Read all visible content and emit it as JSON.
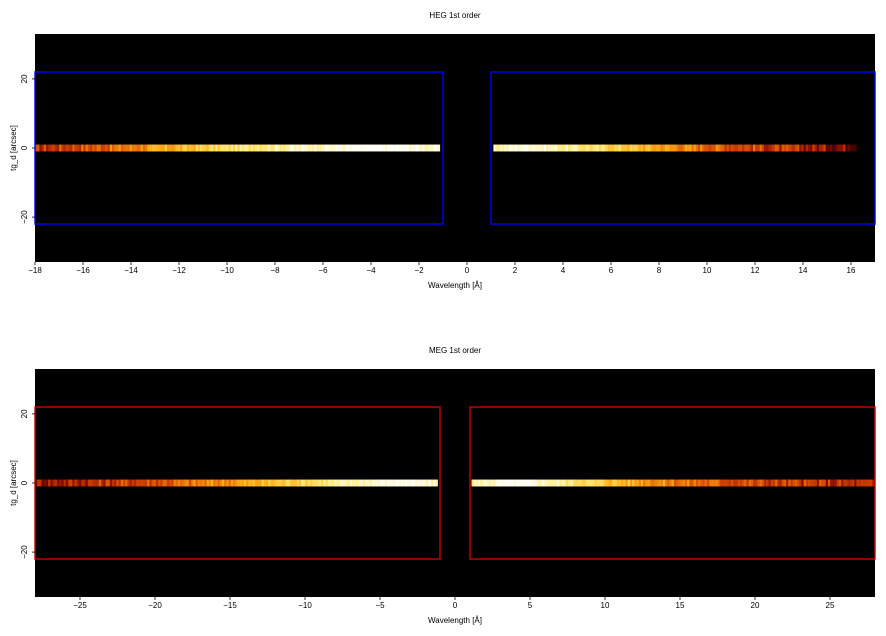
{
  "chart_data": [
    {
      "type": "heatmap",
      "title": "HEG 1st order",
      "xlabel": "Wavelength [Å]",
      "ylabel": "tg_d [arcsec]",
      "xlim": [
        -18,
        17
      ],
      "ylim": [
        -33,
        33
      ],
      "xticks": [
        -18,
        -16,
        -14,
        -12,
        -10,
        -8,
        -6,
        -4,
        -2,
        0,
        2,
        4,
        6,
        8,
        10,
        12,
        14,
        16
      ],
      "xtick_labels": [
        "−18",
        "−16",
        "−14",
        "−12",
        "−10",
        "−8",
        "−6",
        "−4",
        "−2",
        "0",
        "2",
        "4",
        "6",
        "8",
        "10",
        "12",
        "14",
        "16"
      ],
      "yticks": [
        -20,
        0,
        20
      ],
      "ytick_labels": [
        "−20",
        "0",
        "20"
      ],
      "background": "#000000",
      "box_color": "#0000ff",
      "regions": [
        {
          "name": "negative-order",
          "x": [
            -18,
            -1
          ],
          "y": [
            -22,
            22
          ]
        },
        {
          "name": "positive-order",
          "x": [
            1,
            17
          ],
          "y": [
            -22,
            22
          ]
        }
      ],
      "streaks": [
        {
          "x": [
            -18,
            -1.1
          ],
          "y": [
            -1,
            1
          ],
          "profile": [
            0.45,
            0.55,
            0.62,
            0.72,
            0.8,
            0.88,
            0.93,
            0.96,
            0.98,
            1.0,
            1.0,
            0.97
          ]
        },
        {
          "x": [
            1.1,
            16.2
          ],
          "y": [
            -1,
            1
          ],
          "profile": [
            0.95,
            1.0,
            0.95,
            0.9,
            0.85,
            0.76,
            0.68,
            0.6,
            0.52,
            0.44,
            0.36,
            0.3
          ]
        }
      ]
    },
    {
      "type": "heatmap",
      "title": "MEG 1st order",
      "xlabel": "Wavelength [Å]",
      "ylabel": "tg_d [arcsec]",
      "xlim": [
        -28,
        28
      ],
      "ylim": [
        -33,
        33
      ],
      "xticks": [
        -25,
        -20,
        -15,
        -10,
        -5,
        0,
        5,
        10,
        15,
        20,
        25
      ],
      "xtick_labels": [
        "−25",
        "−20",
        "−15",
        "−10",
        "−5",
        "0",
        "5",
        "10",
        "15",
        "20",
        "25"
      ],
      "yticks": [
        -20,
        0,
        20
      ],
      "ytick_labels": [
        "−20",
        "0",
        "20"
      ],
      "background": "#000000",
      "box_color": "#cc0000",
      "regions": [
        {
          "name": "negative-order",
          "x": [
            -28,
            -1
          ],
          "y": [
            -22,
            22
          ]
        },
        {
          "name": "positive-order",
          "x": [
            1,
            28
          ],
          "y": [
            -22,
            22
          ]
        }
      ],
      "streaks": [
        {
          "x": [
            -28,
            -1.1
          ],
          "y": [
            -1,
            1
          ],
          "profile": [
            0.38,
            0.42,
            0.48,
            0.55,
            0.62,
            0.7,
            0.78,
            0.86,
            0.92,
            0.97,
            1.0,
            0.96
          ]
        },
        {
          "x": [
            1.1,
            28
          ],
          "y": [
            -1,
            1
          ],
          "profile": [
            0.95,
            1.0,
            0.97,
            0.9,
            0.82,
            0.72,
            0.64,
            0.58,
            0.52,
            0.48,
            0.44,
            0.4
          ]
        }
      ]
    }
  ]
}
